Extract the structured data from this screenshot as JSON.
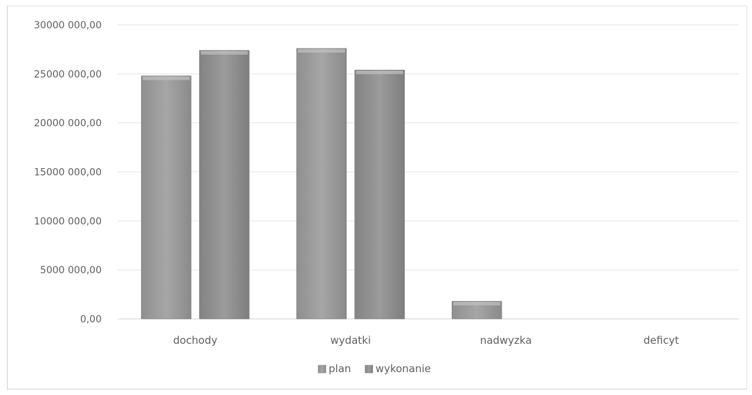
{
  "chart_data": {
    "type": "bar",
    "categories": [
      "dochody",
      "wydatki",
      "nadwyzka",
      "deficyt"
    ],
    "series": [
      {
        "name": "plan",
        "values": [
          24800000,
          27600000,
          1800000,
          0
        ]
      },
      {
        "name": "wykonanie",
        "values": [
          27400000,
          25400000,
          0,
          0
        ]
      }
    ],
    "yticks": [
      "0,00",
      "5000 000,00",
      "10000 000,00",
      "15000 000,00",
      "20000 000,00",
      "25000 000,00",
      "30000 000,00"
    ],
    "ylim": [
      0,
      30000000
    ],
    "title": "",
    "xlabel": "",
    "ylabel": "",
    "grid": true,
    "legend_position": "bottom",
    "colors": {
      "plan": "#9e9e9e",
      "wykonanie": "#8a8a8a"
    }
  }
}
